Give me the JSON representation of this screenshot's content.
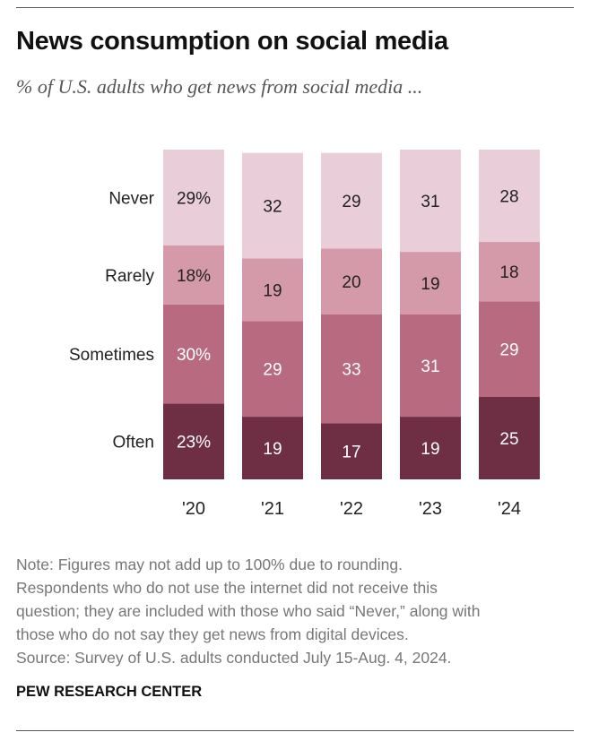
{
  "title": "News consumption on social media",
  "subtitle": "% of U.S. adults who get news from social media ...",
  "chart_data": {
    "type": "bar",
    "stacked": true,
    "categories": [
      "'20",
      "'21",
      "'22",
      "'23",
      "'24"
    ],
    "series": [
      {
        "name": "Often",
        "values": [
          23,
          19,
          17,
          19,
          25
        ],
        "labels": [
          "23%",
          "19",
          "17",
          "19",
          "25"
        ],
        "color": "#6e2f44",
        "text_color": "#ffffff"
      },
      {
        "name": "Sometimes",
        "values": [
          30,
          29,
          33,
          31,
          29
        ],
        "labels": [
          "30%",
          "29",
          "33",
          "31",
          "29"
        ],
        "color": "#b76a80",
        "text_color": "#ffffff"
      },
      {
        "name": "Rarely",
        "values": [
          18,
          19,
          20,
          19,
          18
        ],
        "labels": [
          "18%",
          "19",
          "20",
          "19",
          "18"
        ],
        "color": "#d49aaa",
        "text_color": "#222222"
      },
      {
        "name": "Never",
        "values": [
          29,
          32,
          29,
          31,
          28
        ],
        "labels": [
          "29%",
          "32",
          "29",
          "31",
          "28"
        ],
        "color": "#e9cdd8",
        "text_color": "#222222"
      }
    ],
    "ylim": [
      0,
      100
    ],
    "grid": false,
    "legend": "left, inline labels"
  },
  "notes": {
    "line1": "Note: Figures may not add up to 100% due to rounding.",
    "line2": "Respondents who do not use the internet did not receive this",
    "line3": "question; they are included with those who said “Never,” along with",
    "line4": "those who do not say they get news from digital devices.",
    "line5": "Source: Survey of U.S. adults conducted July 15-Aug. 4, 2024."
  },
  "brand": "PEW RESEARCH CENTER"
}
